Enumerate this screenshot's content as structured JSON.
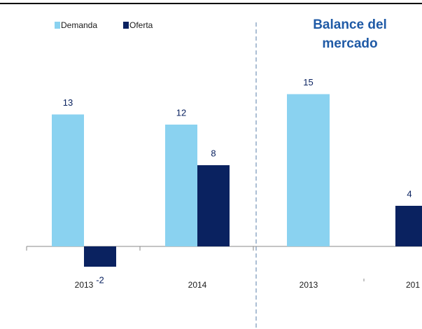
{
  "chart_data": [
    {
      "type": "bar",
      "categories": [
        "2013",
        "2014"
      ],
      "series": [
        {
          "name": "Demanda",
          "color": "#8ad2f0",
          "values": [
            13,
            12
          ]
        },
        {
          "name": "Oferta",
          "color": "#0a2260",
          "values": [
            -2,
            8
          ]
        }
      ]
    },
    {
      "type": "bar",
      "title": "Balance del mercado",
      "categories": [
        "2013",
        "201"
      ],
      "values": [
        15,
        4
      ],
      "colors": [
        "#8ad2f0",
        "#0a2260"
      ]
    }
  ]
}
